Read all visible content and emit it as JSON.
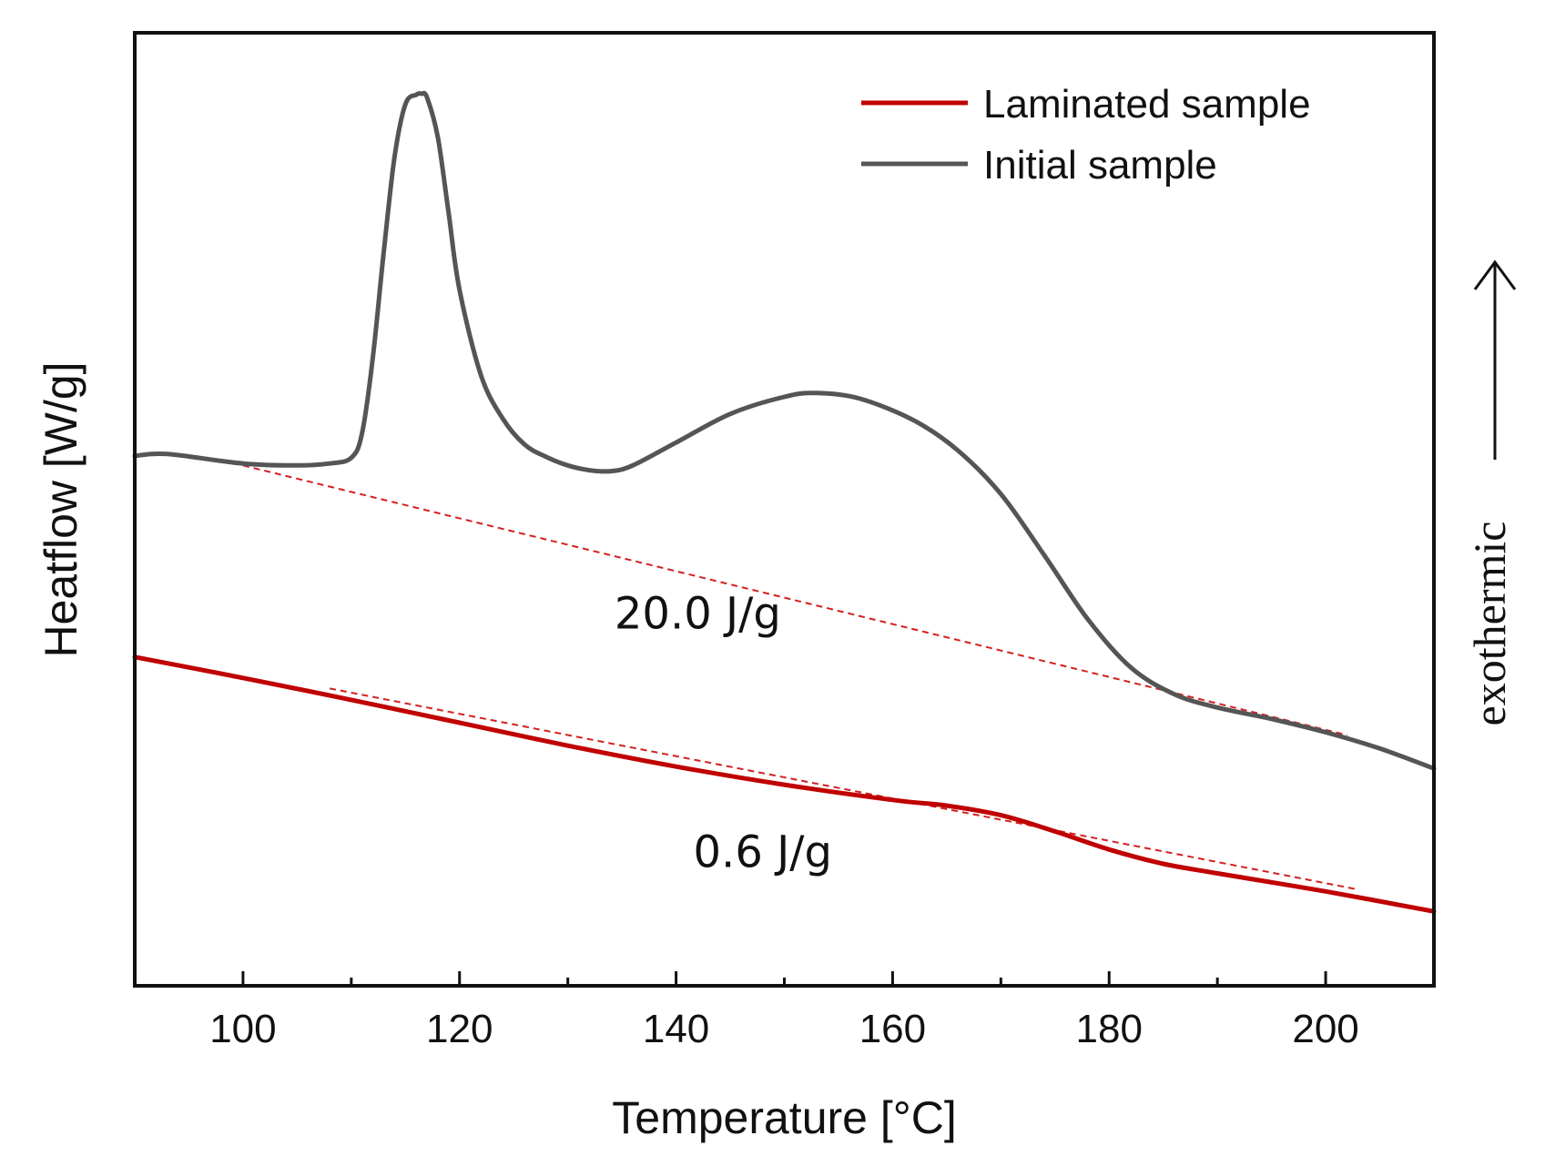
{
  "chart_data": {
    "type": "line",
    "title": "",
    "xlabel": "Temperature [°C]",
    "ylabel": "Heatflow [W/g]",
    "xlim": [
      90,
      210
    ],
    "ylim": [
      0,
      100
    ],
    "x_ticks": [
      100,
      120,
      140,
      160,
      180,
      200
    ],
    "x_minor_ticks": [
      110,
      130,
      150,
      170,
      190
    ],
    "y_ticks_labeled": false,
    "legend_position": "top-right",
    "side_label": "exothermic",
    "side_arrow": "up",
    "colors": {
      "laminated": "#c00000",
      "initial": "#555555",
      "baseline": "#d42020",
      "axis": "#111111"
    },
    "series": [
      {
        "name": "Laminated sample",
        "color": "#c00000",
        "x": [
          90,
          100,
          110,
          120,
          130,
          140,
          150,
          160,
          165,
          170,
          175,
          180,
          185,
          190,
          200,
          210
        ],
        "y": [
          34.5,
          32.3,
          30.0,
          27.6,
          25.2,
          23.0,
          21.1,
          19.5,
          18.9,
          17.9,
          16.2,
          14.3,
          12.8,
          11.8,
          9.9,
          7.8
        ]
      },
      {
        "name": "Initial sample",
        "color": "#555555",
        "x": [
          90,
          93,
          100,
          105,
          108,
          110,
          111,
          112,
          113,
          114,
          115,
          116,
          116.5,
          117,
          118,
          119,
          120,
          122,
          124,
          126,
          128,
          130,
          132,
          134,
          136,
          140,
          145,
          150,
          153,
          157,
          162,
          166,
          170,
          174,
          178,
          182,
          186,
          190,
          195,
          200,
          205,
          210
        ],
        "y": [
          55.6,
          55.8,
          54.8,
          54.6,
          54.8,
          55.4,
          58,
          66,
          77,
          87,
          92.5,
          93.5,
          93.6,
          93.2,
          89,
          81,
          73,
          64,
          59.5,
          56.8,
          55.5,
          54.6,
          54.1,
          54.0,
          54.6,
          57.0,
          60.0,
          61.8,
          62.2,
          61.6,
          59.3,
          56.2,
          51.6,
          45.2,
          38.5,
          33.4,
          30.6,
          29.2,
          28.0,
          26.6,
          24.9,
          22.8
        ]
      }
    ],
    "baselines": [
      {
        "x": [
          100,
          202
        ],
        "y": [
          54.6,
          26.3
        ],
        "style": "dashed"
      },
      {
        "x": [
          108,
          203
        ],
        "y": [
          31.2,
          10.1
        ],
        "style": "dashed"
      }
    ],
    "annotations": [
      {
        "text": "20.0 J/g",
        "x": 142,
        "y": 39
      },
      {
        "text": "0.6 J/g",
        "x": 148,
        "y": 14
      }
    ]
  }
}
